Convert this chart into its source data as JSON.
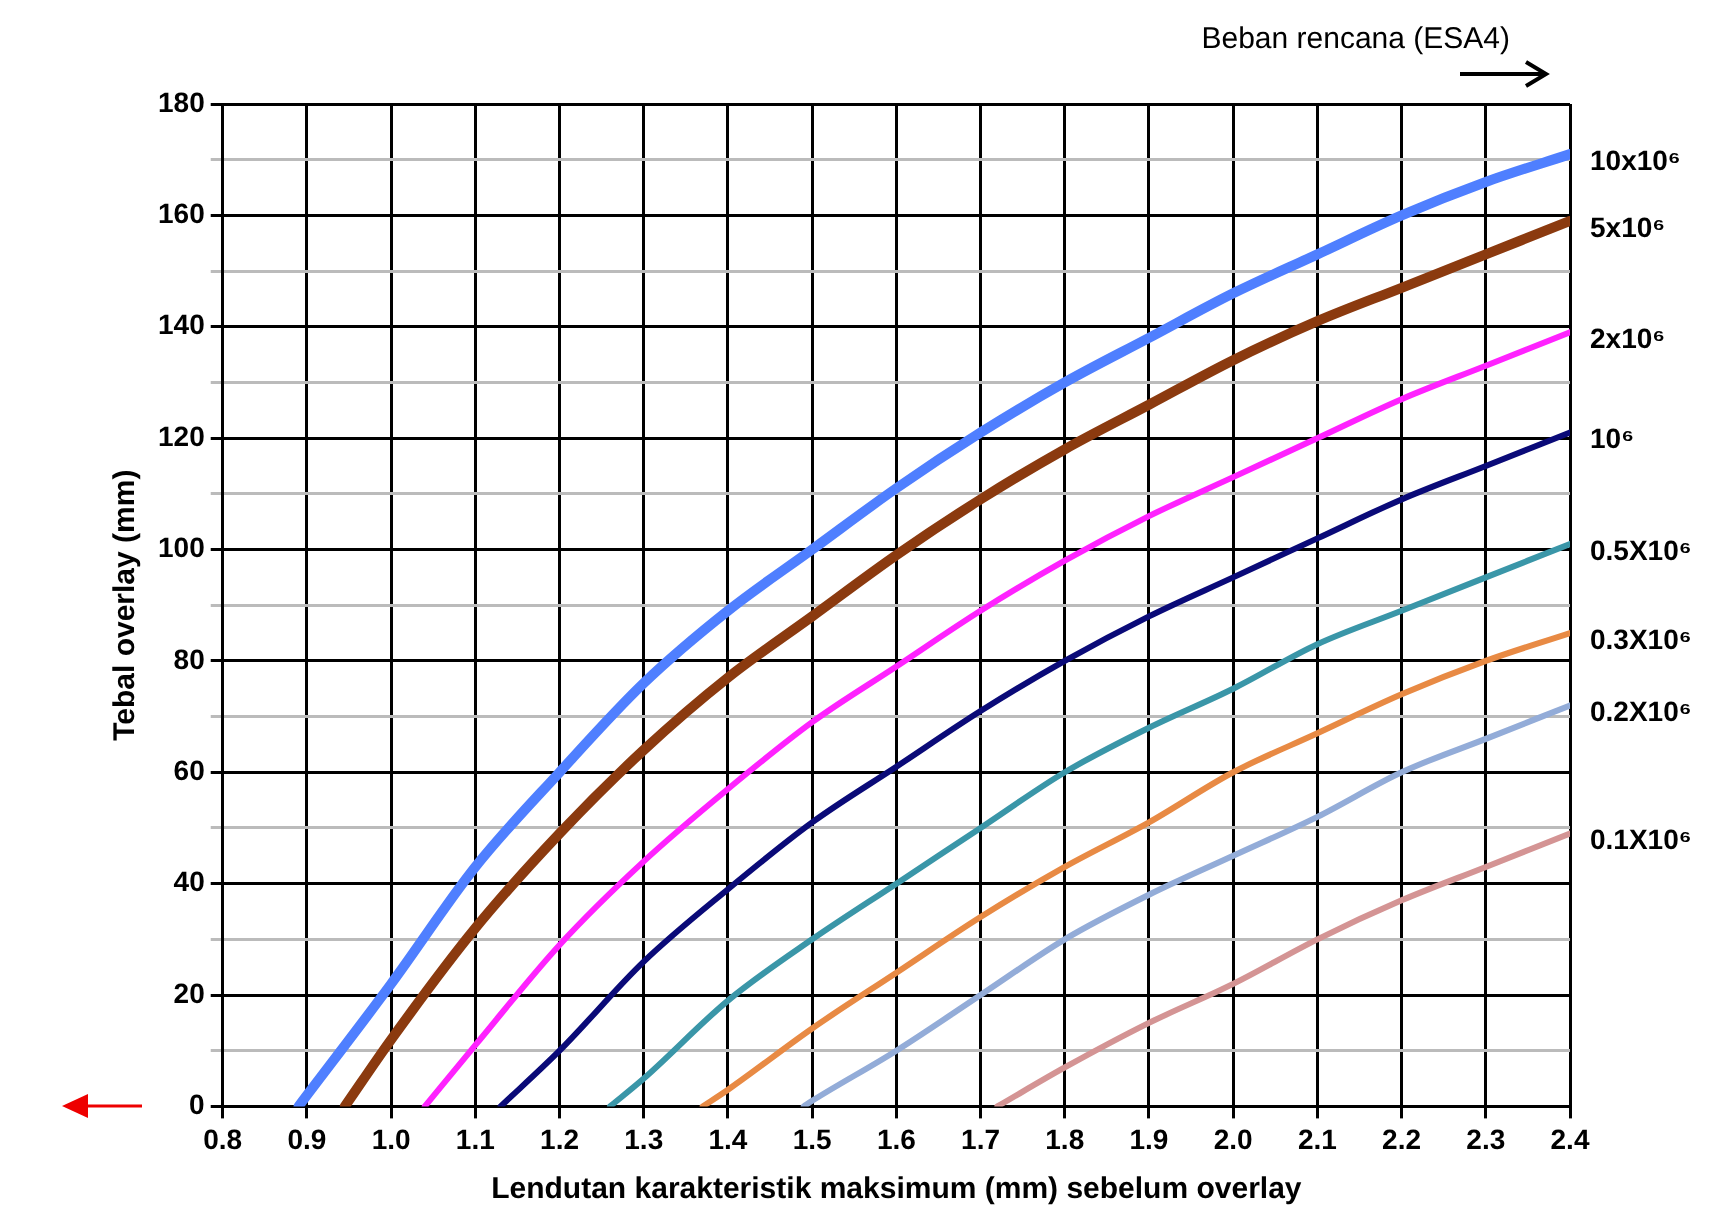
{
  "chart_data": {
    "type": "line",
    "xlabel": "Lendutan karakteristik maksimum (mm) sebelum overlay",
    "ylabel": "Tebal overlay (mm)",
    "legend_title": "Beban rencana (ESA4)",
    "xlim": [
      0.8,
      2.4
    ],
    "xticks": [
      {
        "value": 0.8,
        "label": "0.8"
      },
      {
        "value": 0.9,
        "label": "0.9"
      },
      {
        "value": 1.0,
        "label": "1.0"
      },
      {
        "value": 1.1,
        "label": "1.1"
      },
      {
        "value": 1.2,
        "label": "1.2"
      },
      {
        "value": 1.3,
        "label": "1.3"
      },
      {
        "value": 1.4,
        "label": "1.4"
      },
      {
        "value": 1.5,
        "label": "1.5"
      },
      {
        "value": 1.6,
        "label": "1.6"
      },
      {
        "value": 1.7,
        "label": "1.7"
      },
      {
        "value": 1.8,
        "label": "1.8"
      },
      {
        "value": 1.9,
        "label": "1.9"
      },
      {
        "value": 2.0,
        "label": "2.0"
      },
      {
        "value": 2.1,
        "label": "2.1"
      },
      {
        "value": 2.2,
        "label": "2.2"
      },
      {
        "value": 2.3,
        "label": "2.3"
      },
      {
        "value": 2.4,
        "label": "2.4"
      }
    ],
    "ylim": [
      0,
      180
    ],
    "yticks": [
      0,
      {
        "value": 10,
        "label": null
      },
      20,
      {
        "value": 30,
        "label": null
      },
      40,
      {
        "value": 50,
        "label": null
      },
      60,
      {
        "value": 70,
        "label": null
      },
      80,
      {
        "value": 90,
        "label": null
      },
      100,
      {
        "value": 110,
        "label": null
      },
      120,
      {
        "value": 130,
        "label": null
      },
      140,
      {
        "value": 150,
        "label": null
      },
      160,
      {
        "value": 170,
        "label": null
      },
      180
    ],
    "grid": true,
    "legend": false,
    "marker": "none",
    "line_style": "solid",
    "series": [
      {
        "name": "10x10⁶",
        "color": "#4f7fff",
        "x": [
          0.89,
          1.0,
          1.1,
          1.2,
          1.3,
          1.4,
          1.5,
          1.6,
          1.7,
          1.8,
          1.9,
          2.0,
          2.1,
          2.2,
          2.3,
          2.4
        ],
        "values": [
          0,
          22,
          43,
          60,
          76,
          89,
          100,
          111,
          121,
          130,
          138,
          146,
          153,
          160,
          166,
          171
        ]
      },
      {
        "name": "5x10⁶",
        "color": "#8b3a0f",
        "x": [
          0.945,
          1.0,
          1.1,
          1.2,
          1.3,
          1.4,
          1.5,
          1.6,
          1.7,
          1.8,
          1.9,
          2.0,
          2.1,
          2.2,
          2.3,
          2.4
        ],
        "values": [
          0,
          12,
          32,
          49,
          64,
          77,
          88,
          99,
          109,
          118,
          126,
          134,
          141,
          147,
          153,
          159
        ]
      },
      {
        "name": "2x10⁶",
        "color": "#ff22ff",
        "x": [
          1.04,
          1.1,
          1.2,
          1.3,
          1.4,
          1.5,
          1.6,
          1.7,
          1.8,
          1.9,
          2.0,
          2.1,
          2.2,
          2.3,
          2.4
        ],
        "values": [
          0,
          11,
          29,
          44,
          57,
          69,
          79,
          89,
          98,
          106,
          113,
          120,
          127,
          133,
          139
        ]
      },
      {
        "name": "10⁶",
        "color": "#0a0a78",
        "x": [
          1.13,
          1.2,
          1.3,
          1.4,
          1.5,
          1.6,
          1.7,
          1.8,
          1.9,
          2.0,
          2.1,
          2.2,
          2.3,
          2.4
        ],
        "values": [
          0,
          10,
          26,
          39,
          51,
          61,
          71,
          80,
          88,
          95,
          102,
          109,
          115,
          121
        ]
      },
      {
        "name": "0.5X10⁶",
        "color": "#3a96a8",
        "x": [
          1.26,
          1.3,
          1.4,
          1.5,
          1.6,
          1.7,
          1.8,
          1.9,
          2.0,
          2.1,
          2.2,
          2.3,
          2.4
        ],
        "values": [
          0,
          5,
          19,
          30,
          40,
          50,
          60,
          68,
          75,
          83,
          89,
          95,
          101
        ]
      },
      {
        "name": "0.3X10⁶",
        "color": "#e88a44",
        "x": [
          1.37,
          1.4,
          1.5,
          1.6,
          1.7,
          1.8,
          1.9,
          2.0,
          2.1,
          2.2,
          2.3,
          2.4
        ],
        "values": [
          0,
          3,
          14,
          24,
          34,
          43,
          51,
          60,
          67,
          74,
          80,
          85
        ]
      },
      {
        "name": "0.2X10⁶",
        "color": "#93acd8",
        "x": [
          1.49,
          1.5,
          1.6,
          1.7,
          1.8,
          1.9,
          2.0,
          2.1,
          2.2,
          2.3,
          2.4
        ],
        "values": [
          0,
          1,
          10,
          20,
          30,
          38,
          45,
          52,
          60,
          66,
          72
        ]
      },
      {
        "name": "0.1X10⁶",
        "color": "#d49494",
        "x": [
          1.72,
          1.8,
          1.9,
          2.0,
          2.1,
          2.2,
          2.3,
          2.4
        ],
        "values": [
          0,
          7,
          15,
          22,
          30,
          37,
          43,
          49
        ]
      }
    ]
  }
}
